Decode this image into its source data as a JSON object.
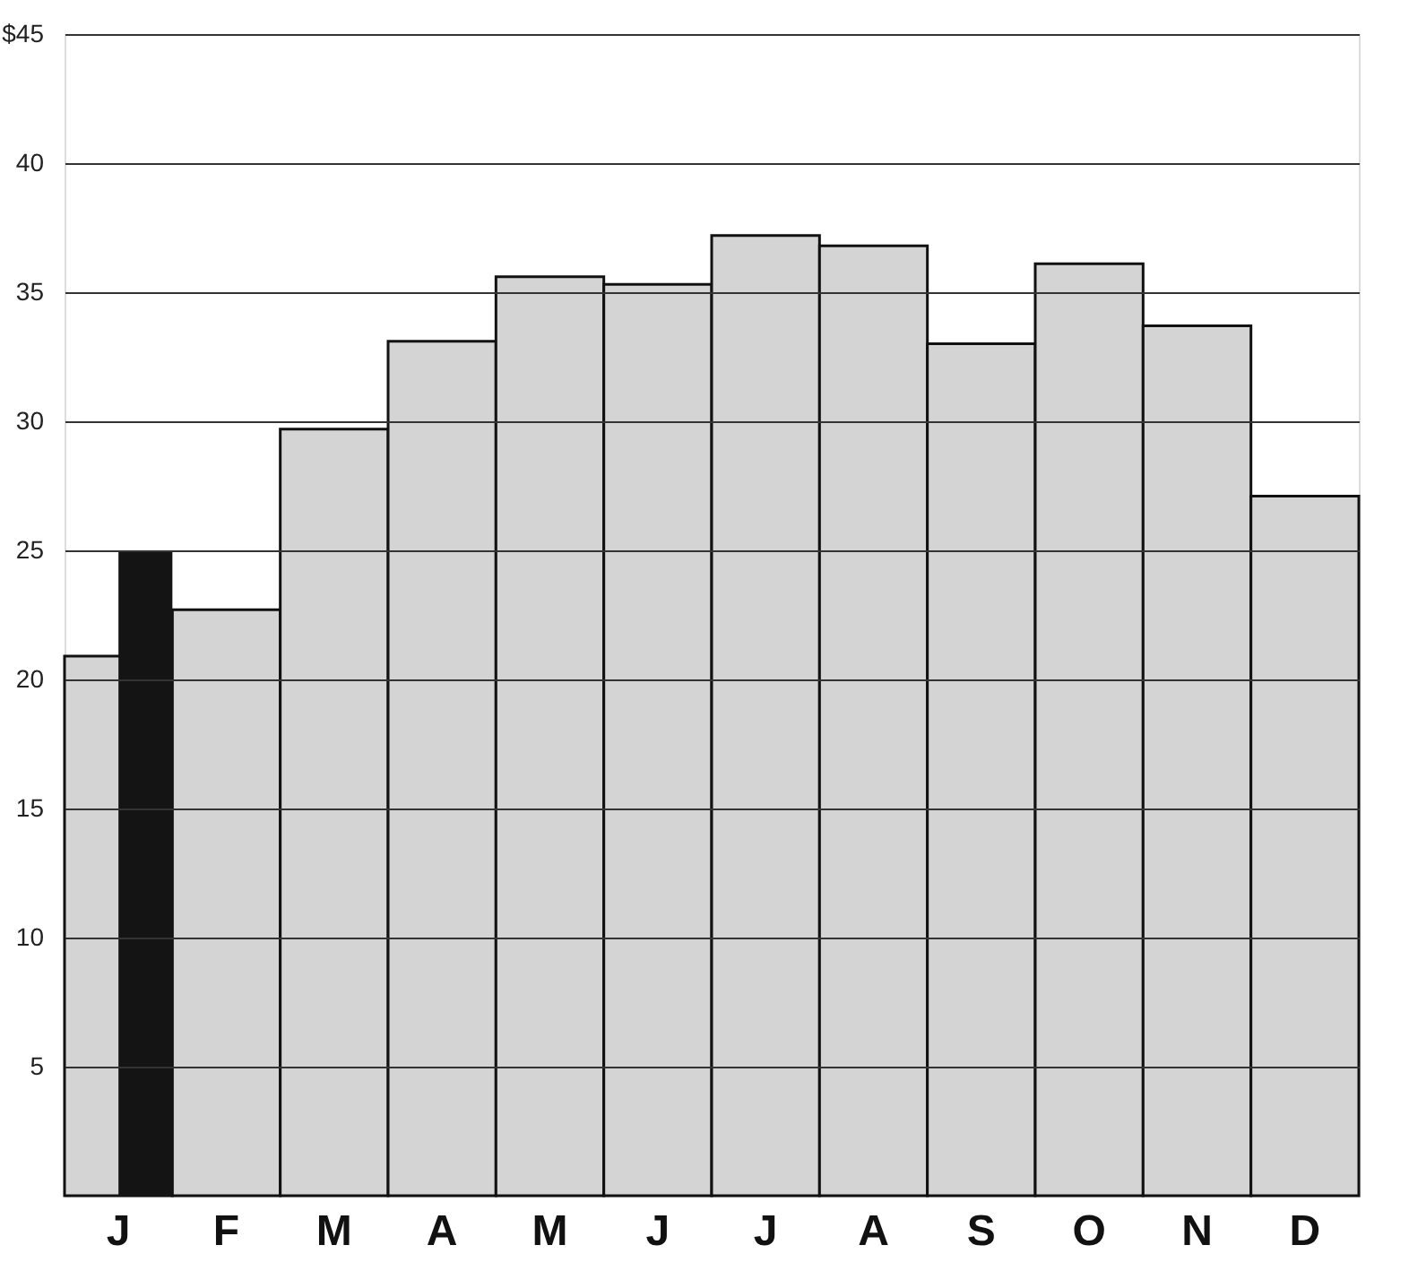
{
  "chart_data": {
    "type": "bar",
    "categories": [
      "J",
      "F",
      "M",
      "A",
      "M",
      "J",
      "J",
      "A",
      "S",
      "O",
      "N",
      "D"
    ],
    "series": [
      {
        "color": "#d4d4d4",
        "values": [
          20.9,
          22.7,
          29.7,
          33.1,
          35.6,
          35.3,
          37.2,
          36.8,
          33.0,
          36.1,
          33.7,
          27.1
        ]
      },
      {
        "color": "#141414",
        "values": [
          25,
          null,
          null,
          null,
          null,
          null,
          null,
          null,
          null,
          null,
          null,
          null
        ]
      }
    ],
    "ylim": [
      0,
      45
    ],
    "yticks": [
      5,
      10,
      15,
      20,
      25,
      30,
      35,
      40,
      {
        "value": 45,
        "label": "$45"
      }
    ],
    "grid": "y"
  }
}
